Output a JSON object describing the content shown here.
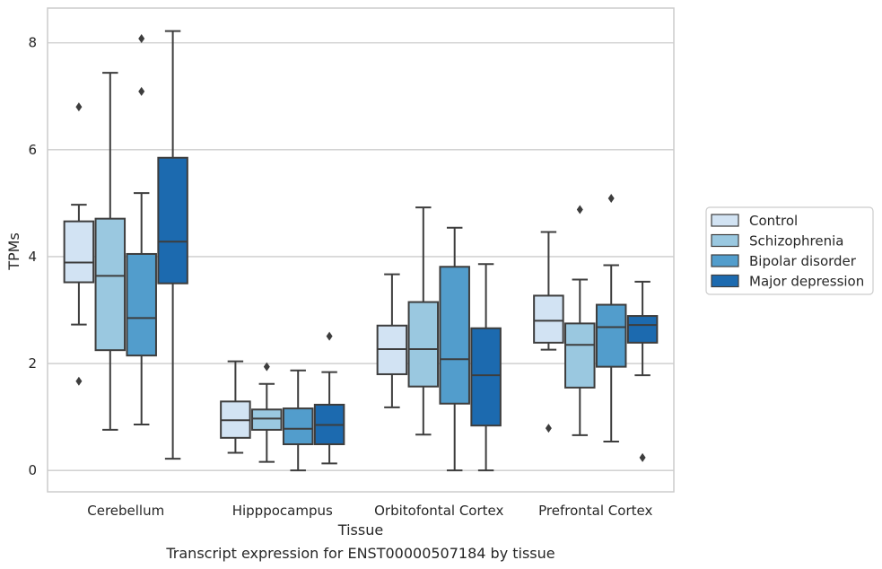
{
  "caption": "Transcript expression for ENST00000507184 by tissue",
  "chart_data": {
    "type": "boxplot",
    "xlabel": "Tissue",
    "ylabel": "TPMs",
    "ylim": [
      -0.4,
      8.65
    ],
    "yticks": [
      0,
      2,
      4,
      6,
      8
    ],
    "grid": "horizontal",
    "legend_position": "right",
    "categories": [
      "Cerebellum",
      "Hipppocampus",
      "Orbitofontal Cortex",
      "Prefrontal Cortex"
    ],
    "series": [
      {
        "name": "Control",
        "color": "#d2e3f3",
        "boxes": [
          {
            "whisker_low": 2.73,
            "q1": 3.52,
            "median": 3.89,
            "q3": 4.66,
            "whisker_high": 4.97,
            "outliers": [
              6.8,
              1.67
            ]
          },
          {
            "whisker_low": 0.33,
            "q1": 0.61,
            "median": 0.94,
            "q3": 1.29,
            "whisker_high": 2.04,
            "outliers": []
          },
          {
            "whisker_low": 1.18,
            "q1": 1.8,
            "median": 2.27,
            "q3": 2.71,
            "whisker_high": 3.67,
            "outliers": []
          },
          {
            "whisker_low": 2.26,
            "q1": 2.39,
            "median": 2.8,
            "q3": 3.27,
            "whisker_high": 4.46,
            "outliers": [
              0.79
            ]
          }
        ]
      },
      {
        "name": "Schizophrenia",
        "color": "#9ac8e0",
        "boxes": [
          {
            "whisker_low": 0.76,
            "q1": 2.25,
            "median": 3.64,
            "q3": 4.71,
            "whisker_high": 7.44,
            "outliers": []
          },
          {
            "whisker_low": 0.16,
            "q1": 0.76,
            "median": 0.97,
            "q3": 1.14,
            "whisker_high": 1.62,
            "outliers": [
              1.94
            ]
          },
          {
            "whisker_low": 0.67,
            "q1": 1.57,
            "median": 2.27,
            "q3": 3.15,
            "whisker_high": 4.92,
            "outliers": []
          },
          {
            "whisker_low": 0.66,
            "q1": 1.55,
            "median": 2.35,
            "q3": 2.75,
            "whisker_high": 3.57,
            "outliers": [
              4.88
            ]
          }
        ]
      },
      {
        "name": "Bipolar disorder",
        "color": "#529dcc",
        "boxes": [
          {
            "whisker_low": 0.86,
            "q1": 2.15,
            "median": 2.85,
            "q3": 4.05,
            "whisker_high": 5.19,
            "outliers": [
              8.08,
              7.09
            ]
          },
          {
            "whisker_low": 0.0,
            "q1": 0.49,
            "median": 0.78,
            "q3": 1.16,
            "whisker_high": 1.87,
            "outliers": []
          },
          {
            "whisker_low": 0.0,
            "q1": 1.25,
            "median": 2.08,
            "q3": 3.81,
            "whisker_high": 4.54,
            "outliers": []
          },
          {
            "whisker_low": 0.54,
            "q1": 1.94,
            "median": 2.68,
            "q3": 3.1,
            "whisker_high": 3.84,
            "outliers": [
              5.09
            ]
          }
        ]
      },
      {
        "name": "Major depression",
        "color": "#1c6aaf",
        "boxes": [
          {
            "whisker_low": 0.22,
            "q1": 3.5,
            "median": 4.28,
            "q3": 5.85,
            "whisker_high": 8.22,
            "outliers": []
          },
          {
            "whisker_low": 0.13,
            "q1": 0.49,
            "median": 0.85,
            "q3": 1.23,
            "whisker_high": 1.84,
            "outliers": [
              2.51
            ]
          },
          {
            "whisker_low": 0.0,
            "q1": 0.84,
            "median": 1.78,
            "q3": 2.66,
            "whisker_high": 3.86,
            "outliers": []
          },
          {
            "whisker_low": 1.78,
            "q1": 2.39,
            "median": 2.72,
            "q3": 2.89,
            "whisker_high": 3.53,
            "outliers": [
              0.24
            ]
          }
        ]
      }
    ]
  },
  "colors": {
    "grid": "#cccccc",
    "frame": "#cccccc",
    "stroke": "#3d3d3d",
    "legend_frame": "#cccccc"
  }
}
